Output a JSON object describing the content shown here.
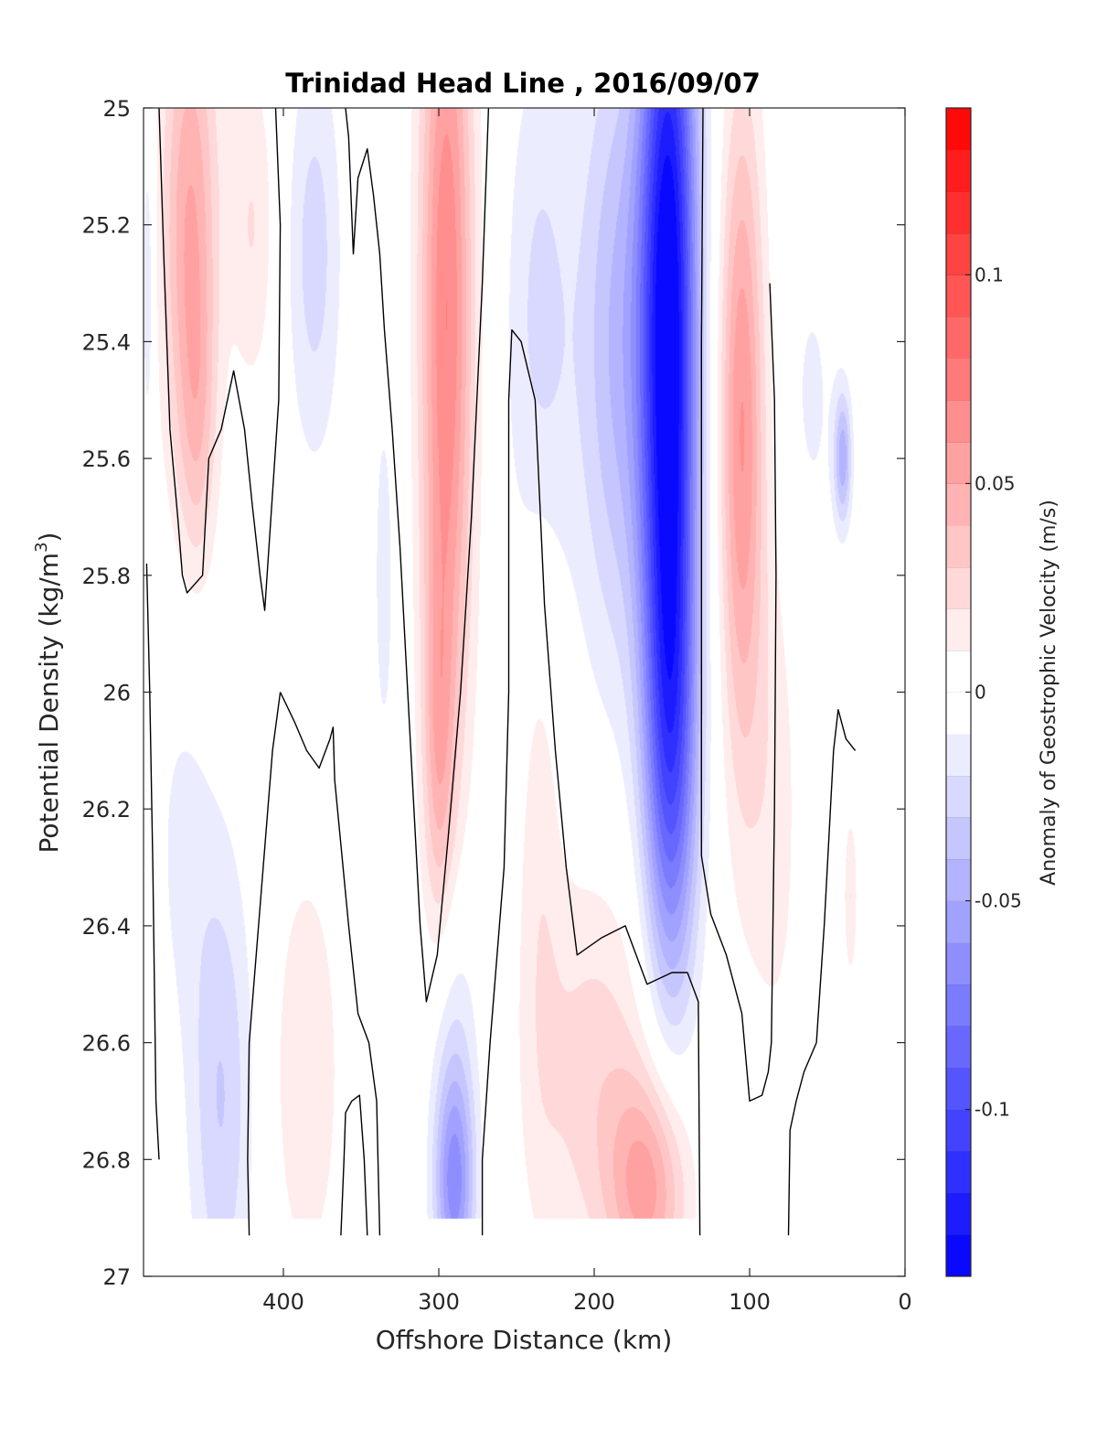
{
  "chart_data": {
    "type": "heatmap",
    "subtype": "filled-contour",
    "title": "Trinidad Head Line , 2016/09/07",
    "xlabel": "Offshore Distance (km)",
    "ylabel_main": "Potential Density (kg/m",
    "ylabel_sup": "3",
    "ylabel_close": ")",
    "colorbar_label": "Anomaly of Geostrophic Velocity (m/s)",
    "x_reversed": true,
    "xlim": [
      0,
      490
    ],
    "ylim": [
      25,
      27
    ],
    "y_reversed": true,
    "x_ticks": [
      {
        "value": 400,
        "label": "400"
      },
      {
        "value": 300,
        "label": "300"
      },
      {
        "value": 200,
        "label": "200"
      },
      {
        "value": 100,
        "label": "100"
      },
      {
        "value": 0,
        "label": "0"
      }
    ],
    "y_ticks": [
      {
        "value": 25,
        "label": "25"
      },
      {
        "value": 25.2,
        "label": "25.2"
      },
      {
        "value": 25.4,
        "label": "25.4"
      },
      {
        "value": 25.6,
        "label": "25.6"
      },
      {
        "value": 25.8,
        "label": "25.8"
      },
      {
        "value": 26,
        "label": "26"
      },
      {
        "value": 26.2,
        "label": "26.2"
      },
      {
        "value": 26.4,
        "label": "26.4"
      },
      {
        "value": 26.6,
        "label": "26.6"
      },
      {
        "value": 26.8,
        "label": "26.8"
      },
      {
        "value": 27,
        "label": "27"
      }
    ],
    "colorbar": {
      "range": [
        -0.14,
        0.14
      ],
      "levels": 28,
      "ticks": [
        {
          "value": 0.1,
          "label": "0.1"
        },
        {
          "value": 0.05,
          "label": "0.05"
        },
        {
          "value": 0,
          "label": "0"
        },
        {
          "value": -0.05,
          "label": "-0.05"
        },
        {
          "value": -0.1,
          "label": "-0.1"
        }
      ],
      "neg_color": "#0000ff",
      "zero_color": "#ffffff",
      "pos_color": "#ff0000"
    },
    "data_extent": {
      "x": [
        30,
        490
      ],
      "y": [
        25,
        26.9
      ]
    },
    "features": [
      {
        "x": 460,
        "y": 25.2,
        "sx": 13,
        "sy": 0.32,
        "value": 0.05
      },
      {
        "x": 455,
        "y": 25.55,
        "sx": 8,
        "sy": 0.18,
        "value": 0.02
      },
      {
        "x": 420,
        "y": 25.2,
        "sx": 10,
        "sy": 0.2,
        "value": 0.02
      },
      {
        "x": 487,
        "y": 25.3,
        "sx": 3,
        "sy": 0.22,
        "value": -0.02
      },
      {
        "x": 380,
        "y": 25.25,
        "sx": 12,
        "sy": 0.25,
        "value": -0.025
      },
      {
        "x": 335,
        "y": 25.8,
        "sx": 8,
        "sy": 0.38,
        "value": -0.012
      },
      {
        "x": 295,
        "y": 25.35,
        "sx": 12,
        "sy": 0.55,
        "value": 0.07
      },
      {
        "x": 300,
        "y": 26.1,
        "sx": 7,
        "sy": 0.22,
        "value": 0.03
      },
      {
        "x": 152,
        "y": 25.35,
        "sx": 13,
        "sy": 0.55,
        "value": -0.14
      },
      {
        "x": 185,
        "y": 25.4,
        "sx": 18,
        "sy": 0.4,
        "value": -0.04
      },
      {
        "x": 235,
        "y": 25.4,
        "sx": 15,
        "sy": 0.35,
        "value": -0.025
      },
      {
        "x": 150,
        "y": 26.1,
        "sx": 12,
        "sy": 0.3,
        "value": -0.06
      },
      {
        "x": 105,
        "y": 25.55,
        "sx": 10,
        "sy": 0.4,
        "value": 0.06
      },
      {
        "x": 85,
        "y": 26.2,
        "sx": 13,
        "sy": 0.35,
        "value": 0.015
      },
      {
        "x": 40,
        "y": 25.6,
        "sx": 4,
        "sy": 0.08,
        "value": -0.045
      },
      {
        "x": 60,
        "y": 25.5,
        "sx": 12,
        "sy": 0.2,
        "value": -0.012
      },
      {
        "x": 440,
        "y": 26.7,
        "sx": 14,
        "sy": 0.3,
        "value": -0.03
      },
      {
        "x": 465,
        "y": 26.25,
        "sx": 14,
        "sy": 0.25,
        "value": -0.012
      },
      {
        "x": 290,
        "y": 26.85,
        "sx": 9,
        "sy": 0.14,
        "value": -0.06
      },
      {
        "x": 290,
        "y": 26.6,
        "sx": 11,
        "sy": 0.2,
        "value": -0.02
      },
      {
        "x": 385,
        "y": 26.65,
        "sx": 15,
        "sy": 0.25,
        "value": 0.02
      },
      {
        "x": 165,
        "y": 26.85,
        "sx": 18,
        "sy": 0.14,
        "value": 0.05
      },
      {
        "x": 200,
        "y": 26.65,
        "sx": 28,
        "sy": 0.25,
        "value": 0.025
      },
      {
        "x": 235,
        "y": 26.2,
        "sx": 10,
        "sy": 0.45,
        "value": 0.015
      },
      {
        "x": 100,
        "y": 26.8,
        "sx": 15,
        "sy": 0.14,
        "value": -0.012
      },
      {
        "x": 35,
        "y": 26.35,
        "sx": 3,
        "sy": 0.1,
        "value": 0.02
      }
    ],
    "zero_contours": [
      [
        [
          480,
          25
        ],
        [
          477,
          25.25
        ],
        [
          473,
          25.55
        ],
        [
          468,
          25.7
        ],
        [
          465,
          25.8
        ],
        [
          462,
          25.83
        ],
        [
          452,
          25.8
        ],
        [
          448,
          25.6
        ],
        [
          440,
          25.55
        ],
        [
          432,
          25.45
        ],
        [
          425,
          25.55
        ],
        [
          420,
          25.68
        ],
        [
          415,
          25.8
        ],
        [
          412,
          25.86
        ],
        [
          408,
          25.7
        ],
        [
          403,
          25.5
        ],
        [
          402,
          25.2
        ],
        [
          405,
          25
        ]
      ],
      [
        [
          480,
          26.8
        ],
        [
          482,
          26.7
        ],
        [
          483,
          26.5
        ],
        [
          484,
          26.3
        ],
        [
          486,
          26
        ],
        [
          488,
          25.78
        ]
      ],
      [
        [
          422,
          26.93
        ],
        [
          423,
          26.8
        ],
        [
          422,
          26.6
        ],
        [
          416,
          26.4
        ],
        [
          410,
          26.2
        ],
        [
          407,
          26.1
        ],
        [
          402,
          26
        ]
      ],
      [
        [
          402,
          26
        ],
        [
          393,
          26.05
        ],
        [
          385,
          26.1
        ],
        [
          377,
          26.13
        ],
        [
          370,
          26.08
        ],
        [
          368,
          26.06
        ],
        [
          367,
          26.15
        ],
        [
          358,
          26.4
        ],
        [
          352,
          26.55
        ],
        [
          345,
          26.6
        ],
        [
          340,
          26.7
        ],
        [
          338,
          26.93
        ]
      ],
      [
        [
          346,
          26.93
        ],
        [
          348,
          26.8
        ],
        [
          351,
          26.69
        ],
        [
          356,
          26.7
        ],
        [
          360,
          26.72
        ],
        [
          361,
          26.8
        ],
        [
          363,
          26.93
        ]
      ],
      [
        [
          335,
          25.38
        ],
        [
          338,
          25.25
        ],
        [
          342,
          25.15
        ],
        [
          346,
          25.07
        ],
        [
          352,
          25.12
        ],
        [
          355,
          25.25
        ],
        [
          358,
          25.05
        ],
        [
          360,
          25
        ]
      ],
      [
        [
          335,
          25.38
        ],
        [
          330,
          25.55
        ],
        [
          325,
          25.75
        ],
        [
          318,
          26.1
        ],
        [
          312,
          26.4
        ],
        [
          308,
          26.53
        ],
        [
          301,
          26.45
        ],
        [
          294,
          26.25
        ],
        [
          286,
          26
        ],
        [
          279,
          25.7
        ],
        [
          272,
          25.3
        ],
        [
          268,
          25
        ]
      ],
      [
        [
          272,
          26.93
        ],
        [
          272,
          26.8
        ],
        [
          267,
          26.6
        ],
        [
          258,
          26.3
        ],
        [
          255,
          26
        ],
        [
          255,
          25.65
        ],
        [
          255,
          25.5
        ],
        [
          253,
          25.38
        ],
        [
          247,
          25.4
        ],
        [
          238,
          25.5
        ],
        [
          232,
          25.85
        ],
        [
          225,
          26.1
        ],
        [
          218,
          26.3
        ],
        [
          211,
          26.45
        ],
        [
          195,
          26.42
        ],
        [
          180,
          26.4
        ],
        [
          166,
          26.5
        ],
        [
          150,
          26.48
        ],
        [
          140,
          26.48
        ],
        [
          133,
          26.53
        ],
        [
          132,
          26.93
        ]
      ],
      [
        [
          130,
          25
        ],
        [
          131,
          25.4
        ],
        [
          131,
          25.8
        ],
        [
          131,
          26.28
        ],
        [
          125,
          26.38
        ],
        [
          115,
          26.45
        ],
        [
          105,
          26.55
        ],
        [
          100,
          26.7
        ],
        [
          92,
          26.69
        ],
        [
          88,
          26.65
        ],
        [
          86,
          26.6
        ],
        [
          84,
          26.2
        ],
        [
          83,
          25.8
        ],
        [
          84,
          25.5
        ],
        [
          87,
          25.3
        ]
      ],
      [
        [
          75,
          26.93
        ],
        [
          74,
          26.75
        ],
        [
          70,
          26.7
        ],
        [
          65,
          26.65
        ],
        [
          57,
          26.6
        ],
        [
          52,
          26.4
        ],
        [
          48,
          26.2
        ],
        [
          46,
          26.1
        ],
        [
          43,
          26.03
        ],
        [
          38,
          26.08
        ],
        [
          32,
          26.1
        ]
      ]
    ]
  }
}
